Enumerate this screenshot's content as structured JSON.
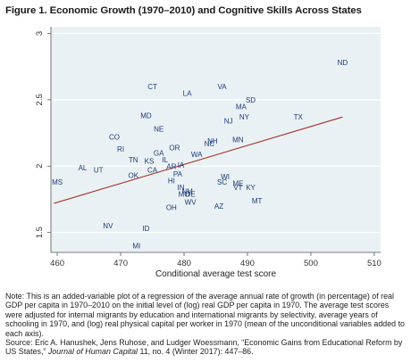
{
  "figure_title": "Figure 1. Economic Growth (1970–2010) and Cognitive Skills Across States",
  "colors": {
    "points": "#1a3a78",
    "fit_line": "#a6332b",
    "plot_bg": "#eaf1f4",
    "grid": "#ffffff",
    "frame": "#555555"
  },
  "chart_data": {
    "type": "scatter",
    "title": "",
    "xlabel": "Conditional average test score",
    "ylabel": "",
    "xlim": [
      459,
      511
    ],
    "ylim": [
      1.35,
      3.05
    ],
    "xticks": [
      460,
      470,
      480,
      490,
      500,
      510
    ],
    "yticks": [
      1.5,
      2,
      2.5,
      3
    ],
    "xtick_labels": [
      "460",
      "470",
      "480",
      "490",
      "500",
      "510"
    ],
    "ytick_labels": [
      "1.5",
      "2",
      "2.5",
      "3"
    ],
    "grid": true,
    "legend": false,
    "marker": "state abbreviation",
    "fit_line": {
      "x": [
        459.5,
        505
      ],
      "y": [
        1.72,
        2.37
      ]
    },
    "points": [
      {
        "label": "ND",
        "x": 505,
        "y": 2.78
      },
      {
        "label": "VA",
        "x": 486,
        "y": 2.6
      },
      {
        "label": "CT",
        "x": 475,
        "y": 2.6
      },
      {
        "label": "LA",
        "x": 480.5,
        "y": 2.55
      },
      {
        "label": "SD",
        "x": 490.5,
        "y": 2.5
      },
      {
        "label": "MA",
        "x": 489,
        "y": 2.45
      },
      {
        "label": "TX",
        "x": 498,
        "y": 2.37
      },
      {
        "label": "NY",
        "x": 489.5,
        "y": 2.37
      },
      {
        "label": "NJ",
        "x": 487,
        "y": 2.34
      },
      {
        "label": "MD",
        "x": 474,
        "y": 2.38
      },
      {
        "label": "NE",
        "x": 476,
        "y": 2.28
      },
      {
        "label": "CO",
        "x": 469,
        "y": 2.22
      },
      {
        "label": "MN",
        "x": 488.5,
        "y": 2.2
      },
      {
        "label": "NH",
        "x": 484.5,
        "y": 2.19
      },
      {
        "label": "NC",
        "x": 484,
        "y": 2.17
      },
      {
        "label": "RI",
        "x": 470,
        "y": 2.13
      },
      {
        "label": "OR",
        "x": 478.5,
        "y": 2.14
      },
      {
        "label": "GA",
        "x": 476,
        "y": 2.1
      },
      {
        "label": "WA",
        "x": 482,
        "y": 2.09
      },
      {
        "label": "IL",
        "x": 477,
        "y": 2.05
      },
      {
        "label": "TN",
        "x": 472,
        "y": 2.05
      },
      {
        "label": "KS",
        "x": 474.5,
        "y": 2.04
      },
      {
        "label": "IA",
        "x": 479.5,
        "y": 2.01
      },
      {
        "label": "AR",
        "x": 478,
        "y": 2.0
      },
      {
        "label": "CA",
        "x": 475,
        "y": 1.97
      },
      {
        "label": "AL",
        "x": 464,
        "y": 1.99
      },
      {
        "label": "UT",
        "x": 466.5,
        "y": 1.97
      },
      {
        "label": "PA",
        "x": 479,
        "y": 1.94
      },
      {
        "label": "WI",
        "x": 486.5,
        "y": 1.92
      },
      {
        "label": "OK",
        "x": 472,
        "y": 1.93
      },
      {
        "label": "HI",
        "x": 478,
        "y": 1.89
      },
      {
        "label": "SC",
        "x": 486,
        "y": 1.88
      },
      {
        "label": "ME",
        "x": 488.5,
        "y": 1.87
      },
      {
        "label": "VT",
        "x": 488.5,
        "y": 1.84
      },
      {
        "label": "KY",
        "x": 490.5,
        "y": 1.84
      },
      {
        "label": "MS",
        "x": 460,
        "y": 1.88
      },
      {
        "label": "IN",
        "x": 479.5,
        "y": 1.84
      },
      {
        "label": "NM",
        "x": 480.5,
        "y": 1.81
      },
      {
        "label": "MO",
        "x": 480,
        "y": 1.79
      },
      {
        "label": "DE",
        "x": 481,
        "y": 1.79
      },
      {
        "label": "MT",
        "x": 491.5,
        "y": 1.74
      },
      {
        "label": "WV",
        "x": 481,
        "y": 1.73
      },
      {
        "label": "AZ",
        "x": 485.5,
        "y": 1.7
      },
      {
        "label": "OH",
        "x": 478,
        "y": 1.69
      },
      {
        "label": "NV",
        "x": 468,
        "y": 1.55
      },
      {
        "label": "ID",
        "x": 474,
        "y": 1.53
      },
      {
        "label": "MI",
        "x": 472.5,
        "y": 1.4
      }
    ]
  },
  "note": {
    "text": "Note: This is an added-variable plot of a regression of the average annual rate of growth (in percentage) of real GDP per capita in 1970–2010 on the initial level of (log) real GDP per capita in 1970. The average test scores were adjusted for internal migrants by education and international migrants by selectivity, average years of schooling in 1970, and (log) real physical capital per worker in 1970 (mean of the unconditional variables added to each axis).",
    "source_prefix": "Source: Eric A. Hanushek, Jens Ruhose, and Ludger Woessmann, “Economic Gains from Educational Reform by US States,” ",
    "source_journal": "Journal of Human Capital",
    "source_suffix": " 11, no. 4 (Winter 2017): 447–86."
  }
}
